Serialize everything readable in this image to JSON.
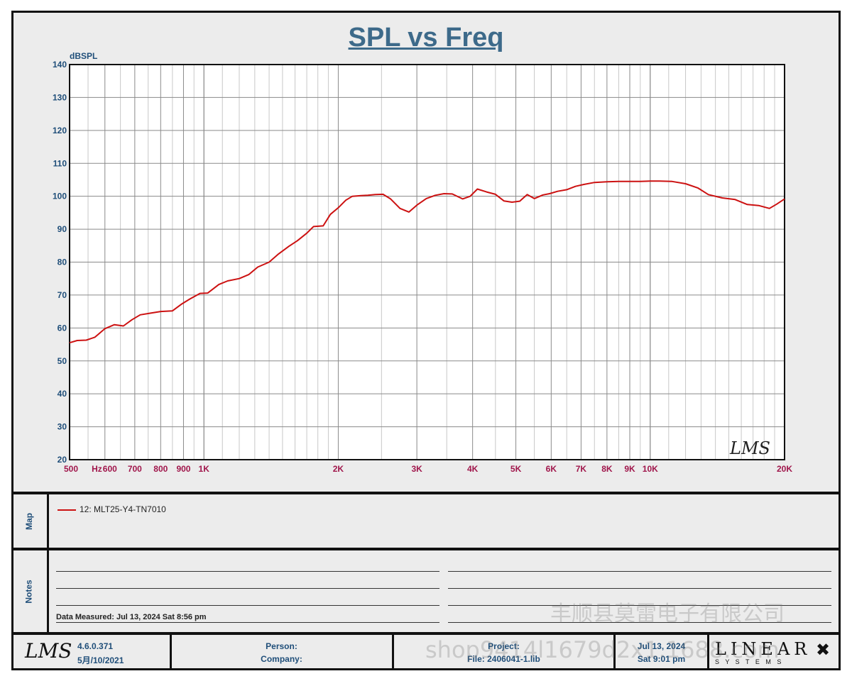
{
  "chart_data": {
    "type": "line",
    "title": "SPL vs Freq",
    "ylabel": "dBSPL",
    "xlabel": "Hz",
    "x_scale": "log",
    "xlim": [
      500,
      20000
    ],
    "ylim": [
      20,
      140
    ],
    "y_ticks": [
      20,
      30,
      40,
      50,
      60,
      70,
      80,
      90,
      100,
      110,
      120,
      130,
      140
    ],
    "x_ticks": [
      {
        "value": 500,
        "label": "500"
      },
      {
        "value": 600,
        "label": "600"
      },
      {
        "value": 700,
        "label": "700"
      },
      {
        "value": 800,
        "label": "800"
      },
      {
        "value": 900,
        "label": "900"
      },
      {
        "value": 1000,
        "label": "1K"
      },
      {
        "value": 2000,
        "label": "2K"
      },
      {
        "value": 3000,
        "label": "3K"
      },
      {
        "value": 4000,
        "label": "4K"
      },
      {
        "value": 5000,
        "label": "5K"
      },
      {
        "value": 6000,
        "label": "6K"
      },
      {
        "value": 7000,
        "label": "7K"
      },
      {
        "value": 8000,
        "label": "8K"
      },
      {
        "value": 9000,
        "label": "9K"
      },
      {
        "value": 10000,
        "label": "10K"
      },
      {
        "value": 20000,
        "label": "20K"
      }
    ],
    "unit_label": "Hz",
    "grid": true,
    "series": [
      {
        "name": "12: MLT25-Y4-TN7010",
        "color": "#cc1111",
        "x": [
          500,
          520,
          545,
          570,
          600,
          630,
          660,
          690,
          720,
          760,
          800,
          850,
          890,
          930,
          980,
          1020,
          1080,
          1130,
          1200,
          1260,
          1320,
          1400,
          1470,
          1550,
          1620,
          1700,
          1760,
          1850,
          1920,
          2000,
          2080,
          2150,
          2250,
          2330,
          2420,
          2520,
          2620,
          2750,
          2880,
          3000,
          3150,
          3300,
          3450,
          3600,
          3800,
          3950,
          4100,
          4300,
          4500,
          4700,
          4900,
          5100,
          5300,
          5500,
          5750,
          5950,
          6200,
          6500,
          6800,
          7100,
          7500,
          8000,
          8500,
          9000,
          9500,
          10000,
          10500,
          11200,
          12000,
          12800,
          13500,
          14500,
          15500,
          16500,
          17500,
          18500,
          19200,
          20000
        ],
        "y": [
          55.5,
          56.2,
          56.3,
          57.2,
          59.8,
          61.0,
          60.6,
          62.5,
          64.0,
          64.5,
          65.0,
          65.2,
          67.2,
          68.8,
          70.5,
          70.6,
          73.2,
          74.3,
          75.0,
          76.2,
          78.5,
          80.0,
          82.5,
          84.8,
          86.5,
          88.8,
          90.8,
          91.0,
          94.5,
          96.5,
          98.8,
          100.0,
          100.2,
          100.3,
          100.5,
          100.6,
          99.2,
          96.3,
          95.2,
          97.3,
          99.3,
          100.3,
          100.8,
          100.7,
          99.2,
          100.0,
          102.2,
          101.3,
          100.6,
          98.6,
          98.2,
          98.5,
          100.5,
          99.3,
          100.4,
          100.8,
          101.5,
          102.0,
          103.0,
          103.6,
          104.2,
          104.4,
          104.5,
          104.5,
          104.5,
          104.6,
          104.6,
          104.5,
          103.8,
          102.5,
          100.5,
          99.5,
          99.0,
          97.5,
          97.2,
          96.3,
          97.6,
          99.2
        ]
      }
    ]
  },
  "map": {
    "label": "Map",
    "legend_entry": "12: MLT25-Y4-TN7010"
  },
  "notes": {
    "label": "Notes",
    "data_measured": "Data Measured: Jul 13, 2024  Sat  8:56 pm"
  },
  "footer": {
    "lms_logo": "LMS",
    "version": "4.6.0.371",
    "version_date": "5月/10/2021",
    "person_label": "Person:",
    "company_label": "Company:",
    "project_label": "Project:",
    "file_label": "File: 2406041-1.lib",
    "date": "Jul 13, 2024",
    "time": "Sat  9:01 pm",
    "linear_logo": "LINEAR",
    "linear_sub": "S Y S T E M S"
  },
  "plot_logo": "LMS",
  "watermarks": {
    "chinese": "丰顺县莫雷电子有限公司",
    "shop": "shop9414l1679d2x1.1688.com"
  }
}
